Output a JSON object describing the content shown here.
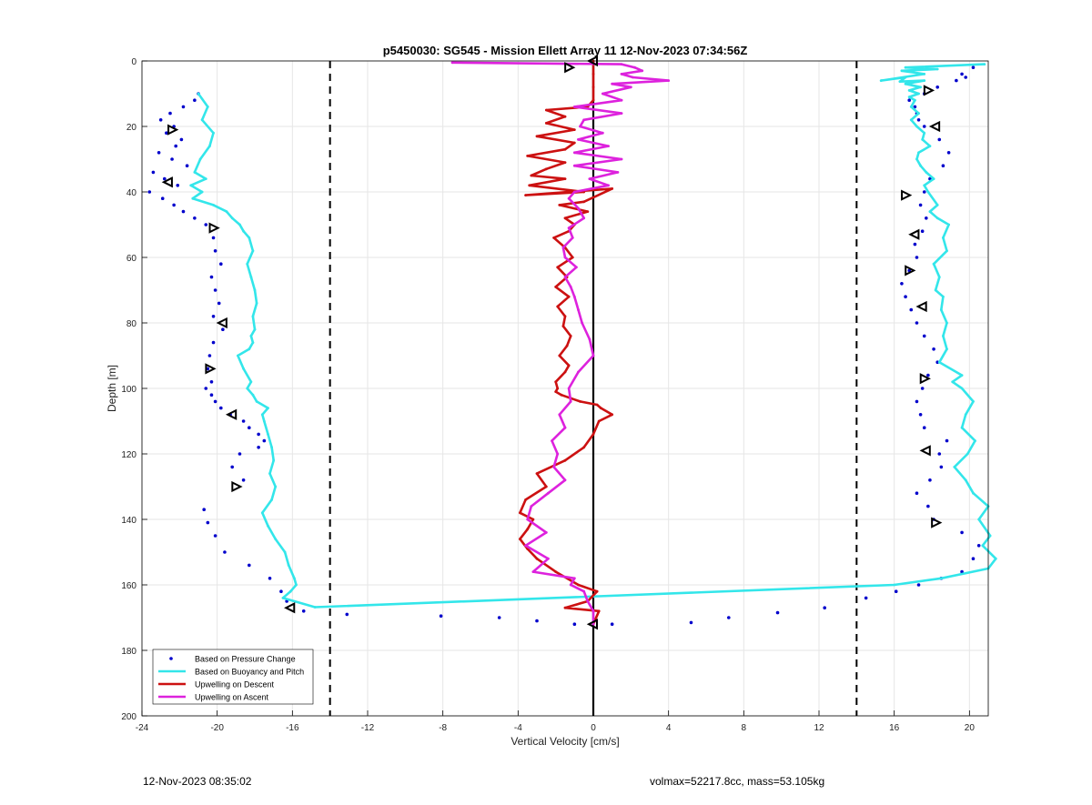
{
  "chart_data": {
    "type": "scatter",
    "title": "p5450030: SG545 - Mission Ellett Array 11 12-Nov-2023 07:34:56Z",
    "xlabel": "Vertical Velocity [cm/s]",
    "ylabel": "Depth [m]",
    "xlim": [
      -24,
      21
    ],
    "ylim": [
      0,
      200
    ],
    "y_reversed": true,
    "xticks": [
      -24,
      -20,
      -16,
      -12,
      -8,
      -4,
      0,
      4,
      8,
      12,
      16,
      20
    ],
    "yticks": [
      0,
      20,
      40,
      60,
      80,
      100,
      120,
      140,
      160,
      180,
      200
    ],
    "grid": true,
    "legend_position": "bottom-left",
    "reference_lines": {
      "dashed_x": [
        -14,
        14
      ],
      "solid_x": [
        0
      ]
    },
    "series": [
      {
        "name": "Based on Pressure Change",
        "style": "points",
        "color": "#0000cc",
        "x": [
          -21,
          -21.2,
          -21.8,
          -22.5,
          -23,
          -22.3,
          -22.7,
          -21.9,
          -22.2,
          -23.1,
          -22.4,
          -21.6,
          -23.4,
          -22.8,
          -22.1,
          -23.6,
          -22.9,
          -22.3,
          -21.8,
          -21.2,
          -20.6,
          -20.2,
          -20.1,
          -19.8,
          -20.3,
          -20.1,
          -19.9,
          -20.2,
          -19.7,
          -20.2,
          -20.4,
          -20.5,
          -20.3,
          -20.6,
          -20.3,
          -20.1,
          -19.8,
          -19.3,
          -18.6,
          -18.3,
          -17.8,
          -17.5,
          -17.8,
          -18.8,
          -19.2,
          -18.6,
          -20.7,
          -20.5,
          -20.1,
          -19.6,
          -18.3,
          -17.2,
          -16.6,
          -16.3,
          -15.4,
          -13.1,
          -8.1,
          -5,
          -3,
          -1,
          1,
          5.2,
          7.2,
          9.8,
          12.3,
          14.5,
          16.1,
          17.3,
          18.5,
          19.6,
          20.2,
          20.5,
          19.6,
          18.1,
          17.8,
          17.2,
          17.9,
          18.5,
          18.4,
          18.8,
          17.6,
          17.4,
          17.2,
          17.5,
          17.8,
          18.3,
          18.1,
          17.6,
          17.2,
          16.9,
          16.6,
          16.4,
          16.8,
          17.2,
          17.1,
          17.5,
          17.7,
          17.4,
          17.6,
          17.9,
          18.6,
          18.9,
          18.4,
          17.6,
          17.3,
          17.2,
          17.1,
          16.8,
          17.6,
          18.3,
          19.3,
          19.8,
          19.6,
          20.2
        ],
        "y": [
          10,
          12,
          14,
          16,
          18,
          20,
          22,
          24,
          26,
          28,
          30,
          32,
          34,
          36,
          38,
          40,
          42,
          44,
          46,
          48,
          50,
          54,
          58,
          62,
          66,
          70,
          74,
          78,
          82,
          86,
          90,
          94,
          98,
          100,
          102,
          104,
          106,
          108,
          110,
          112,
          114,
          116,
          118,
          120,
          124,
          128,
          137,
          141,
          145,
          150,
          154,
          158,
          162,
          165,
          168,
          169,
          169.5,
          170,
          171,
          172,
          172,
          171.5,
          170,
          168.5,
          167,
          164,
          162,
          160,
          158,
          156,
          152,
          148,
          144,
          140,
          136,
          132,
          128,
          124,
          120,
          116,
          112,
          108,
          104,
          100,
          96,
          92,
          88,
          84,
          80,
          76,
          72,
          68,
          64,
          60,
          56,
          52,
          48,
          44,
          40,
          36,
          32,
          28,
          24,
          20,
          18,
          16,
          14,
          12,
          10,
          8,
          6,
          5,
          4,
          2
        ]
      },
      {
        "name": "Based on Buoyancy and Pitch",
        "style": "line",
        "color": "#33e6ea",
        "x": [
          -21,
          -20.5,
          -20.8,
          -20.2,
          -20.4,
          -20.9,
          -21.2,
          -20.6,
          -21.4,
          -20.8,
          -21.3,
          -20.2,
          -19.5,
          -19.2,
          -18.8,
          -18.6,
          -18.3,
          -18.1,
          -18.4,
          -18.2,
          -18.0,
          -17.9,
          -18.1,
          -18.0,
          -18.2,
          -18.1,
          -18.3,
          -18.9,
          -18.6,
          -18.2,
          -18.4,
          -18.1,
          -17.9,
          -17.3,
          -17.6,
          -17.5,
          -17.3,
          -17.1,
          -17.0,
          -17.2,
          -16.9,
          -17.1,
          -17.6,
          -17.3,
          -16.9,
          -16.4,
          -16.2,
          -15.9,
          -15.8,
          -16.1,
          -16.5,
          -14.8,
          16,
          18.5,
          21,
          21.4,
          20.7,
          21.1,
          20.5,
          21.0,
          20.2,
          19.8,
          19.2,
          19.9,
          20.3,
          19.6,
          19.8,
          20.2,
          19.6,
          19.1,
          19.6,
          18.4,
          18.8,
          18.6,
          18.8,
          18.5,
          18.6,
          18.2,
          18.4,
          18.1,
          18.8,
          18.6,
          18.9,
          18.3,
          17.9,
          18.3,
          17.8,
          17.6,
          18.1,
          17.7,
          17.4,
          17.2,
          17.3,
          17.9,
          17.5,
          17.6,
          17.2,
          16.9,
          17.3,
          16.9,
          17.1,
          16.8,
          17.3,
          16.8,
          17.4,
          16.6,
          17.6,
          16.3,
          16.6,
          15.3,
          17.6,
          16.4,
          18.3,
          16.6,
          20.8
        ],
        "y": [
          10,
          14,
          18,
          22,
          26,
          30,
          34,
          36,
          38,
          40,
          42,
          44,
          46,
          48,
          50,
          52,
          54,
          58,
          62,
          66,
          70,
          74,
          78,
          82,
          84,
          86,
          88,
          90,
          94,
          98,
          100,
          102,
          104,
          106,
          108,
          110,
          114,
          118,
          122,
          126,
          130,
          134,
          138,
          142,
          146,
          150,
          154,
          158,
          160,
          162,
          164,
          166.8,
          160,
          158,
          155,
          152,
          148,
          145,
          140,
          136,
          132,
          128,
          124,
          120,
          116,
          112,
          108,
          104,
          100,
          98,
          96,
          92,
          88,
          84,
          80,
          76,
          72,
          70,
          66,
          62,
          58,
          54,
          50,
          48,
          46,
          44,
          40,
          38,
          36,
          34,
          32,
          30,
          28,
          26,
          24,
          22,
          20,
          18,
          16,
          14,
          12,
          11,
          10,
          9,
          8,
          7,
          6,
          6.3,
          5,
          6,
          4,
          3,
          2.5,
          2,
          1
        ]
      },
      {
        "name": "Upwelling on Descent",
        "style": "line",
        "color": "#cc1111",
        "x": [
          0,
          0,
          0,
          0,
          -0.3,
          -2.5,
          -1.5,
          -2.5,
          -1.0,
          -3.0,
          -1.0,
          -1.5,
          -3.5,
          -1.5,
          -2.5,
          -3.3,
          -1.5,
          -3.4,
          -0.5,
          -3.6,
          1.0,
          -0.5,
          -1.8,
          -0.3,
          -1.5,
          -1.0,
          -1.3,
          -2.1,
          -1.5,
          -1.1,
          -1.9,
          -1.4,
          -2.0,
          -1.3,
          -1.9,
          -1.5,
          -1.6,
          -1.2,
          -1.4,
          -1.8,
          -1.3,
          -1.5,
          -2.0,
          -1.9,
          -2.0,
          -1.7,
          -1.2,
          -0.7,
          0.2,
          0.4,
          1.0,
          0.3,
          0.0,
          -0.5,
          -1.5,
          -3.0,
          -2.5,
          -3.6,
          -3.9,
          -3.2,
          -3.5,
          -3.9,
          -3.5,
          -3.0,
          -2.0,
          -0.8,
          0.2,
          -0.3,
          -1.5,
          0.3,
          0
        ],
        "y": [
          0,
          4,
          8,
          12,
          14,
          15,
          17,
          19,
          21,
          23,
          25,
          27,
          29,
          31,
          33,
          35,
          36,
          38,
          40,
          41,
          39,
          43,
          44,
          46,
          48,
          50,
          52,
          54,
          57,
          60,
          63,
          66,
          69,
          72,
          75,
          78,
          81,
          84,
          87,
          90,
          93,
          95,
          98,
          100,
          101,
          102,
          103,
          104,
          105,
          106,
          108,
          110,
          114,
          118,
          122,
          126,
          130,
          134,
          138,
          140,
          143,
          146,
          149,
          152,
          156,
          160,
          162,
          165,
          167,
          168,
          172
        ]
      },
      {
        "name": "Upwelling on Ascent",
        "style": "line",
        "color": "#dd22dd",
        "x": [
          -7.5,
          1.5,
          2.2,
          2.6,
          1.5,
          2.1,
          4.0,
          1.0,
          2.0,
          0.5,
          1.5,
          -1.0,
          1.5,
          -0.5,
          -0.7,
          0.5,
          -0.8,
          0.8,
          -1.0,
          1.5,
          -1.0,
          1.3,
          -0.2,
          0.8,
          -1.0,
          -1.3,
          -0.8,
          -0.5,
          -1.3,
          -1.1,
          -1.6,
          -1.5,
          -0.9,
          -1.5,
          -1.2,
          -1.0,
          -0.8,
          -0.6,
          -0.2,
          0.0,
          -0.8,
          -1.3,
          -1.2,
          -1.8,
          -1.5,
          -2.2,
          -1.9,
          -2.1,
          -1.5,
          -2.4,
          -3.3,
          -3.5,
          -2.5,
          -3.6,
          -2.4,
          -3.2,
          -1.0,
          -1.2,
          -0.5,
          -0.3,
          0,
          0
        ],
        "y": [
          0.5,
          1,
          2,
          3,
          4,
          5,
          6,
          7,
          8,
          10,
          12,
          14,
          16,
          18,
          20,
          22,
          24,
          26,
          28,
          30,
          32,
          34,
          36,
          38,
          40,
          42,
          45,
          48,
          51,
          54,
          57,
          60,
          63,
          66,
          69,
          72,
          76,
          80,
          85,
          90,
          95,
          100,
          104,
          108,
          112,
          116,
          120,
          124,
          128,
          132,
          136,
          140,
          144,
          148,
          152,
          156,
          158,
          160,
          162,
          165,
          168,
          172
        ]
      }
    ],
    "turn_markers": {
      "color": "#000000",
      "x": [
        -22.4,
        -22.6,
        -20.2,
        -19.7,
        -20.4,
        -19.2,
        -19.0,
        -16.1,
        -1.3,
        0,
        17.8,
        18.2,
        16.6,
        17.1,
        16.8,
        17.5,
        17.6,
        17.7,
        18.2,
        0
      ],
      "y": [
        21,
        37,
        51,
        80,
        94,
        108,
        130,
        167,
        2,
        0,
        9,
        20,
        41,
        53,
        64,
        75,
        97,
        119,
        141,
        172
      ]
    }
  },
  "footer": {
    "left": "12-Nov-2023 08:35:02",
    "right": "volmax=52217.8cc, mass=53.105kg"
  }
}
